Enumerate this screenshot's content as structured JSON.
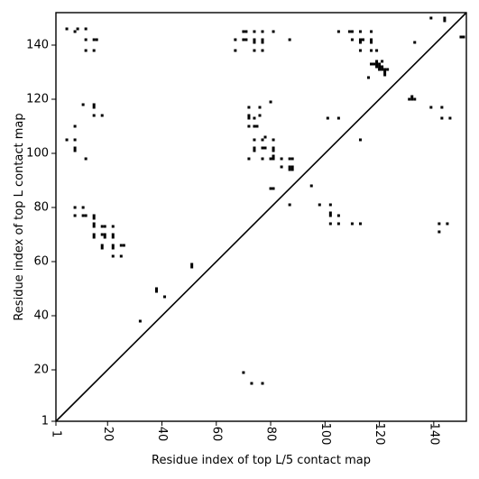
{
  "chart_data": {
    "type": "scatter",
    "xlabel": "Residue index of top L/5 contact map",
    "ylabel": "Residue index of top L contact map",
    "xlim": [
      1,
      152
    ],
    "ylim": [
      1,
      152
    ],
    "xticks": [
      1,
      20,
      40,
      60,
      80,
      100,
      120,
      140
    ],
    "yticks": [
      1,
      20,
      40,
      60,
      80,
      100,
      120,
      140
    ],
    "xtick_labels": [
      "1",
      "20",
      "40",
      "60",
      "80",
      "100",
      "120",
      "140"
    ],
    "ytick_labels": [
      "1",
      "20",
      "40",
      "60",
      "80",
      "100",
      "120",
      "140"
    ],
    "diagonal": true,
    "marker_color": "#000000",
    "points": [
      [
        5,
        146
      ],
      [
        8,
        145
      ],
      [
        9,
        146
      ],
      [
        12,
        146
      ],
      [
        12,
        142
      ],
      [
        15,
        142
      ],
      [
        16,
        142
      ],
      [
        12,
        138
      ],
      [
        15,
        138
      ],
      [
        70,
        145
      ],
      [
        71,
        145
      ],
      [
        74,
        145
      ],
      [
        77,
        145
      ],
      [
        81,
        145
      ],
      [
        70,
        142
      ],
      [
        71,
        142
      ],
      [
        67,
        142
      ],
      [
        74,
        142
      ],
      [
        74,
        141
      ],
      [
        77,
        142
      ],
      [
        77,
        141
      ],
      [
        67,
        138
      ],
      [
        74,
        138
      ],
      [
        77,
        138
      ],
      [
        87,
        142
      ],
      [
        105,
        145
      ],
      [
        109,
        145
      ],
      [
        110,
        145
      ],
      [
        113,
        145
      ],
      [
        117,
        145
      ],
      [
        110,
        142
      ],
      [
        113,
        142
      ],
      [
        114,
        142
      ],
      [
        117,
        142
      ],
      [
        117,
        141
      ],
      [
        113,
        141
      ],
      [
        113,
        138
      ],
      [
        117,
        138
      ],
      [
        119,
        138
      ],
      [
        117,
        133
      ],
      [
        118,
        133
      ],
      [
        119,
        133
      ],
      [
        120,
        133
      ],
      [
        119,
        134
      ],
      [
        121,
        134
      ],
      [
        119,
        132
      ],
      [
        120,
        132
      ],
      [
        121,
        132
      ],
      [
        120,
        131
      ],
      [
        121,
        131
      ],
      [
        122,
        131
      ],
      [
        122,
        130
      ],
      [
        123,
        131
      ],
      [
        122,
        129
      ],
      [
        116,
        128
      ],
      [
        133,
        141
      ],
      [
        139,
        150
      ],
      [
        144,
        149
      ],
      [
        144,
        150
      ],
      [
        150,
        143
      ],
      [
        151,
        143
      ],
      [
        132,
        121
      ],
      [
        132,
        120
      ],
      [
        133,
        120
      ],
      [
        131,
        120
      ],
      [
        139,
        117
      ],
      [
        143,
        117
      ],
      [
        143,
        113
      ],
      [
        146,
        113
      ],
      [
        101,
        113
      ],
      [
        105,
        113
      ],
      [
        113,
        105
      ],
      [
        11,
        118
      ],
      [
        15,
        118
      ],
      [
        15,
        117
      ],
      [
        15,
        114
      ],
      [
        18,
        114
      ],
      [
        8,
        110
      ],
      [
        5,
        105
      ],
      [
        8,
        105
      ],
      [
        8,
        102
      ],
      [
        8,
        101
      ],
      [
        12,
        98
      ],
      [
        72,
        117
      ],
      [
        72,
        114
      ],
      [
        72,
        113
      ],
      [
        74,
        113
      ],
      [
        76,
        117
      ],
      [
        76,
        114
      ],
      [
        72,
        110
      ],
      [
        74,
        110
      ],
      [
        75,
        110
      ],
      [
        80,
        119
      ],
      [
        74,
        105
      ],
      [
        77,
        105
      ],
      [
        78,
        106
      ],
      [
        74,
        102
      ],
      [
        74,
        101
      ],
      [
        77,
        102
      ],
      [
        78,
        102
      ],
      [
        81,
        102
      ],
      [
        81,
        101
      ],
      [
        81,
        105
      ],
      [
        72,
        98
      ],
      [
        77,
        98
      ],
      [
        80,
        98
      ],
      [
        81,
        98
      ],
      [
        81,
        99
      ],
      [
        84,
        98
      ],
      [
        87,
        98
      ],
      [
        88,
        98
      ],
      [
        84,
        95
      ],
      [
        87,
        95
      ],
      [
        88,
        95
      ],
      [
        87,
        94
      ],
      [
        88,
        94
      ],
      [
        95,
        88
      ],
      [
        80,
        87
      ],
      [
        81,
        87
      ],
      [
        87,
        81
      ],
      [
        98,
        81
      ],
      [
        102,
        81
      ],
      [
        102,
        78
      ],
      [
        102,
        77
      ],
      [
        105,
        77
      ],
      [
        102,
        74
      ],
      [
        105,
        74
      ],
      [
        110,
        74
      ],
      [
        113,
        74
      ],
      [
        8,
        80
      ],
      [
        11,
        80
      ],
      [
        8,
        77
      ],
      [
        11,
        77
      ],
      [
        12,
        77
      ],
      [
        15,
        77
      ],
      [
        15,
        76
      ],
      [
        15,
        74
      ],
      [
        15,
        73
      ],
      [
        15,
        70
      ],
      [
        15,
        69
      ],
      [
        18,
        73
      ],
      [
        19,
        73
      ],
      [
        22,
        73
      ],
      [
        18,
        70
      ],
      [
        19,
        70
      ],
      [
        19,
        69
      ],
      [
        22,
        70
      ],
      [
        22,
        69
      ],
      [
        18,
        66
      ],
      [
        18,
        65
      ],
      [
        22,
        66
      ],
      [
        22,
        65
      ],
      [
        25,
        66
      ],
      [
        26,
        66
      ],
      [
        22,
        62
      ],
      [
        25,
        62
      ],
      [
        142,
        74
      ],
      [
        145,
        74
      ],
      [
        142,
        71
      ],
      [
        51,
        59
      ],
      [
        51,
        58
      ],
      [
        38,
        50
      ],
      [
        38,
        49
      ],
      [
        41,
        47
      ],
      [
        32,
        38
      ],
      [
        70,
        19
      ],
      [
        73,
        15
      ],
      [
        77,
        15
      ]
    ]
  }
}
